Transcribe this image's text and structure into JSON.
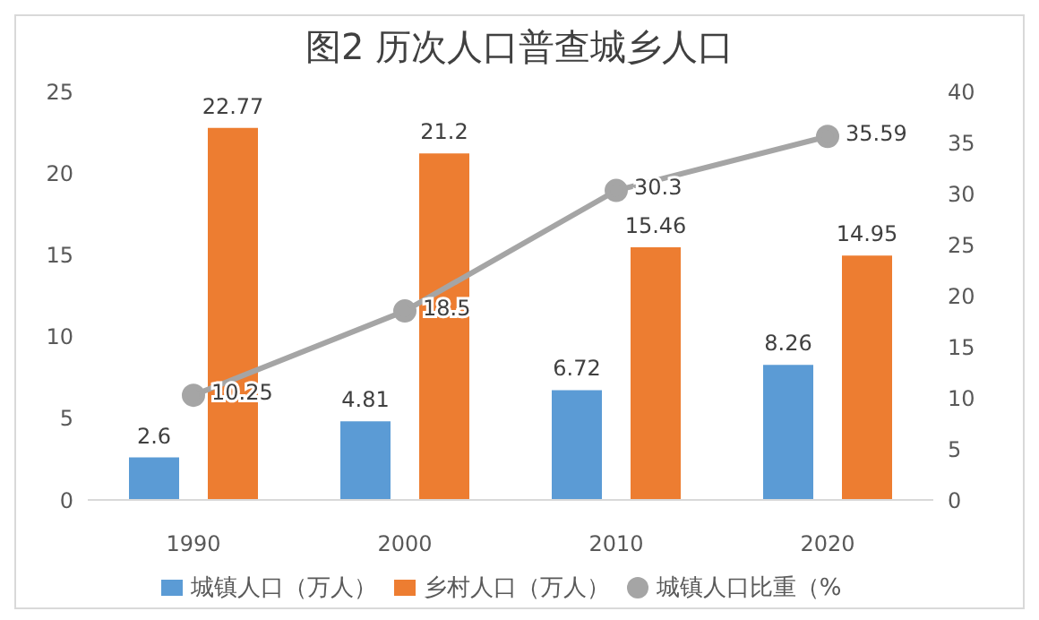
{
  "chart_data": {
    "type": "bar",
    "title": "图2 历次人口普查城乡人口",
    "categories": [
      "1990",
      "2000",
      "2010",
      "2020"
    ],
    "series": [
      {
        "name": "城镇人口（万人）",
        "color": "#5b9bd5",
        "values": [
          2.6,
          4.81,
          6.72,
          8.26
        ]
      },
      {
        "name": "乡村人口（万人）",
        "color": "#ed7d31",
        "values": [
          22.77,
          21.2,
          15.46,
          14.95
        ]
      },
      {
        "name": "城镇人口比重（%",
        "type": "line",
        "axis": "y2",
        "color": "#a5a5a5",
        "values": [
          10.25,
          18.5,
          30.3,
          35.59
        ]
      }
    ],
    "ylim": [
      0,
      25
    ],
    "yticks": [
      0,
      5,
      10,
      15,
      20,
      25
    ],
    "y2lim": [
      0,
      40
    ],
    "y2ticks": [
      0,
      5,
      10,
      15,
      20,
      25,
      30,
      35,
      40
    ],
    "data_labels": true,
    "legend": "bottom",
    "marker": "circle",
    "grid": false
  }
}
